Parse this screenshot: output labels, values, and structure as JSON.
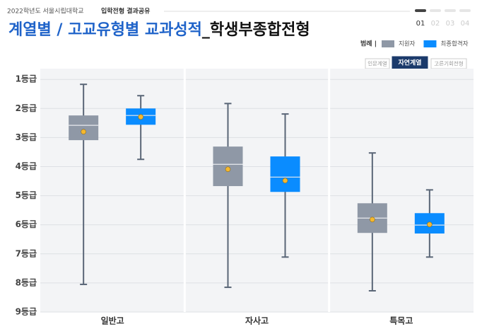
{
  "header": {
    "school": "2022학년도 서울시립대학교",
    "section": "입학전형 결과공유",
    "pages": [
      "01",
      "02",
      "03",
      "04"
    ]
  },
  "title_main": "계열별 / 고교유형별 교과성적",
  "title_sub": "_학생부종합전형",
  "legend_label": "범례 |",
  "tabs": [
    "인문계열",
    "자연계열",
    "고른기회전형"
  ],
  "active_tab": 1,
  "chart_data": {
    "type": "box",
    "categories": [
      "일반고",
      "자사고",
      "특목고"
    ],
    "series": [
      {
        "name": "지원자",
        "color": "#8f98a6",
        "min": [
          1.17,
          1.83,
          3.53
        ],
        "q1": [
          2.24,
          3.31,
          5.26
        ],
        "median": [
          2.58,
          3.92,
          5.77
        ],
        "q3": [
          3.09,
          4.67,
          6.28
        ],
        "max": [
          8.05,
          8.15,
          8.27
        ],
        "mean": [
          2.8,
          4.09,
          5.82
        ]
      },
      {
        "name": "최종합격자",
        "color": "#0a8cff",
        "min": [
          1.56,
          2.19,
          4.8
        ],
        "q1": [
          2.0,
          3.65,
          5.6
        ],
        "median": [
          2.24,
          4.36,
          6.01
        ],
        "q3": [
          2.56,
          4.87,
          6.3
        ],
        "max": [
          3.75,
          7.11,
          7.11
        ],
        "mean": [
          2.29,
          4.48,
          5.99
        ]
      }
    ],
    "ylim": [
      9,
      0.63
    ],
    "yticks": [
      {
        "value": 1,
        "label": "1등급"
      },
      {
        "value": 2,
        "label": "2등급"
      },
      {
        "value": 3,
        "label": "3등급"
      },
      {
        "value": 4,
        "label": "4등급"
      },
      {
        "value": 5,
        "label": "5등급"
      },
      {
        "value": 6,
        "label": "6등급"
      },
      {
        "value": 7,
        "label": "7등급"
      },
      {
        "value": 8,
        "label": "8등급"
      },
      {
        "value": 9,
        "label": "9등급"
      }
    ],
    "grid": true
  }
}
